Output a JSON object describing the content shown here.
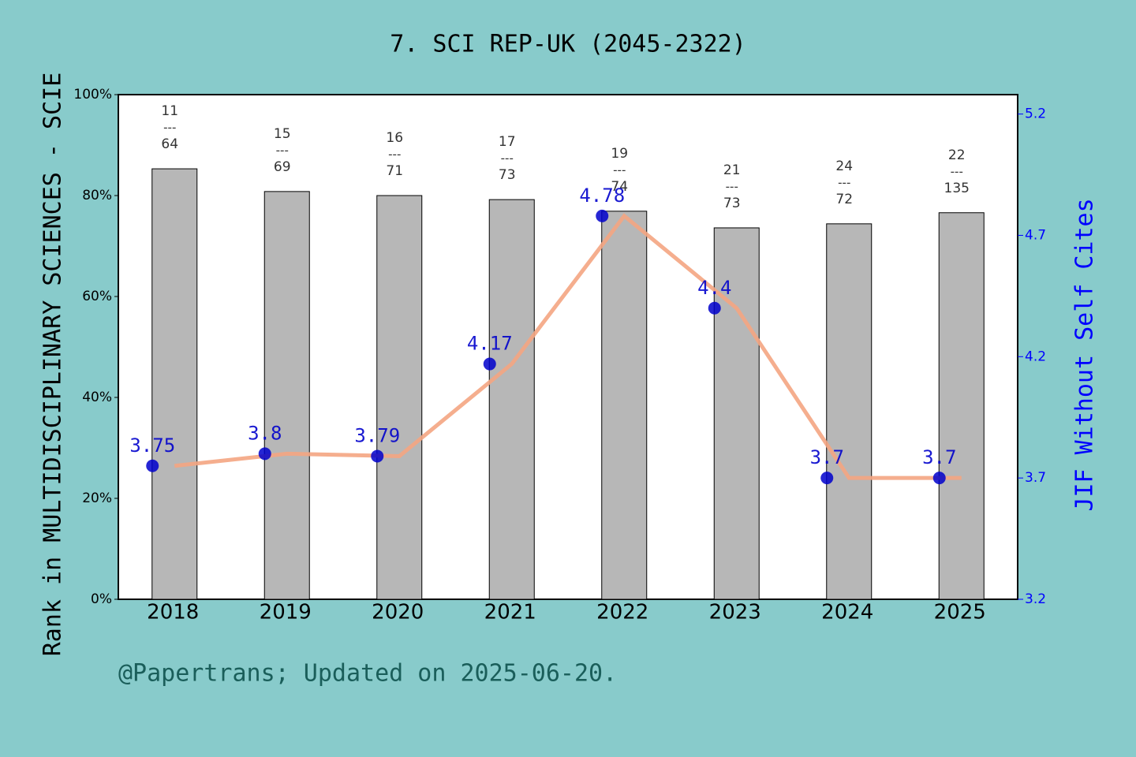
{
  "chart_data": {
    "type": "bar",
    "title": "7. SCI REP-UK (2045-2322)",
    "ylabel": "Rank in MULTIDISCIPLINARY SCIENCES - SCIE",
    "y2label": "JIF Without Self Cites",
    "footer": "@Papertrans; Updated on 2025-06-20.",
    "categories": [
      "2018",
      "2019",
      "2020",
      "2021",
      "2022",
      "2023",
      "2024",
      "2025"
    ],
    "series": [
      {
        "type": "bar",
        "color": "#b7b7b7",
        "values": [
          85.3,
          80.8,
          80.0,
          79.2,
          76.9,
          73.6,
          74.4,
          76.6
        ]
      },
      {
        "type": "line",
        "axis": "y2",
        "color": "#f4a582",
        "marker_color": "#0000cc",
        "label_color": "#0000cc",
        "values": [
          3.75,
          3.8,
          3.79,
          4.17,
          4.78,
          4.4,
          3.7,
          3.7
        ]
      }
    ],
    "annotations": [
      {
        "top": "11",
        "bottom": "64"
      },
      {
        "top": "15",
        "bottom": "69"
      },
      {
        "top": "16",
        "bottom": "71"
      },
      {
        "top": "17",
        "bottom": "73"
      },
      {
        "top": "19",
        "bottom": "74"
      },
      {
        "top": "21",
        "bottom": "73"
      },
      {
        "top": "24",
        "bottom": "72"
      },
      {
        "top": "22",
        "bottom": "135"
      }
    ],
    "annotation_separator": "---",
    "ylim": [
      0,
      100
    ],
    "yticks": [
      {
        "value": 0,
        "label": "0%"
      },
      {
        "value": 20,
        "label": "20%"
      },
      {
        "value": 40,
        "label": "40%"
      },
      {
        "value": 60,
        "label": "60%"
      },
      {
        "value": 80,
        "label": "80%"
      },
      {
        "value": 100,
        "label": "100%"
      }
    ],
    "y2lim": [
      3.2,
      5.28
    ],
    "y2ticks": [
      3.2,
      3.7,
      4.2,
      4.7,
      5.2
    ],
    "y2_color": "#0000ff"
  }
}
